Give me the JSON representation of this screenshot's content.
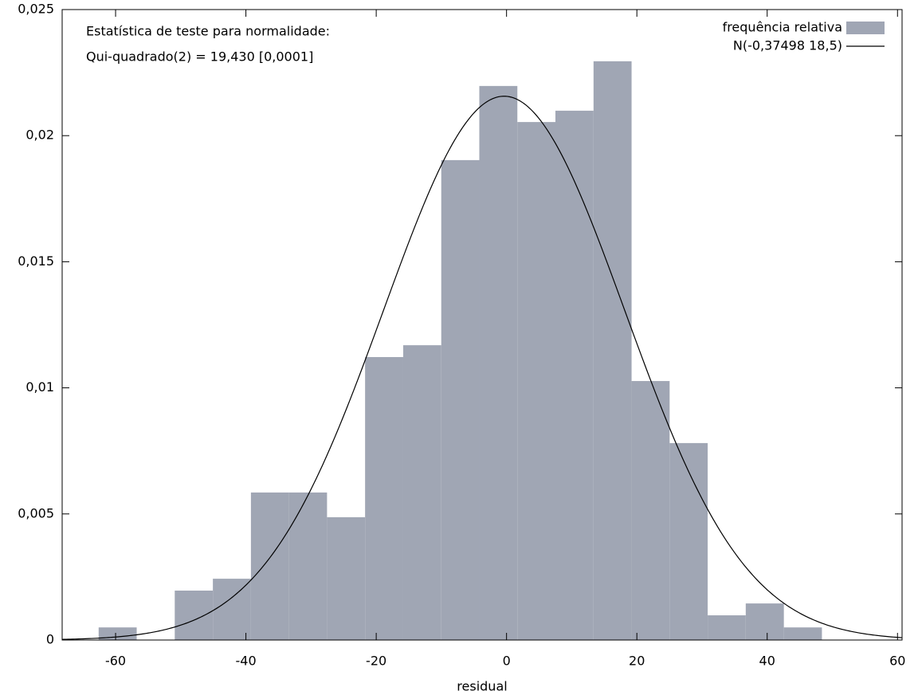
{
  "chart_data": {
    "type": "histogram",
    "xlabel": "residual",
    "annotations": [
      "Estatística de teste para normalidade:",
      "Qui-quadrado(2) = 19,430 [0,0001]"
    ],
    "bins": [
      -62.6,
      -56.76,
      -50.92,
      -45.07,
      -39.23,
      -33.39,
      -27.55,
      -21.71,
      -15.86,
      -10.02,
      -4.18,
      1.66,
      7.5,
      13.35,
      19.19,
      25.03,
      30.87,
      36.71,
      42.56,
      48.4
    ],
    "series": [
      {
        "name": "frequência relativa",
        "color": "#a0a6b4",
        "values": [
          0.0005,
          0,
          0.00196,
          0.00243,
          0.00585,
          0.00585,
          0.00487,
          0.01122,
          0.01169,
          0.01903,
          0.02197,
          0.02054,
          0.02099,
          0.02295,
          0.01027,
          0.00781,
          0.00098,
          0.00145,
          0.0005
        ]
      },
      {
        "name": "N(-0,37498 18,5)",
        "color": "#000000",
        "mean": -0.37498,
        "sd": 18.5
      }
    ],
    "xlim": [
      -68.2,
      60.7
    ],
    "xticks": [
      -60,
      -40,
      -20,
      0,
      20,
      40,
      60
    ],
    "ylim": [
      0,
      0.025
    ],
    "yticks": [
      0,
      {
        "value": 0.005,
        "label": "0,005"
      },
      {
        "value": 0.01,
        "label": "0,01"
      },
      {
        "value": 0.015,
        "label": "0,015"
      },
      {
        "value": 0.02,
        "label": "0,02"
      },
      {
        "value": 0.025,
        "label": "0,025"
      }
    ],
    "legend": "top-right"
  }
}
